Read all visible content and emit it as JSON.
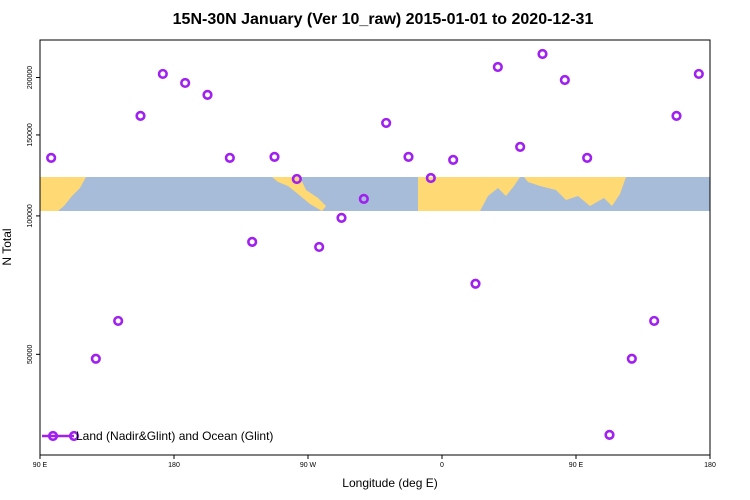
{
  "chart_data": {
    "type": "scatter",
    "title": "15N-30N January (Ver 10_raw)   2015-01-01 to 2020-12-31",
    "x_label": "Longitude (deg E)",
    "y_label": "N Total",
    "x": [
      97.5,
      127.5,
      142.5,
      157.5,
      172.5,
      187.5,
      202.5,
      217.5,
      232.5,
      247.5,
      262.5,
      277.5,
      292.5,
      307.5,
      322.5,
      337.5,
      352.5,
      367.5,
      382.5,
      397.5,
      412.5,
      427.5,
      442.5,
      457.5,
      472.5,
      487.5,
      502.5,
      517.5,
      532.5
    ],
    "series": [
      {
        "name": "Land (Nadir&Glint) and Ocean (Glint)",
        "color": "#a020f0",
        "values": [
          133700,
          48900,
          59100,
          165000,
          203600,
          194600,
          183300,
          133700,
          87800,
          134400,
          120300,
          85600,
          99000,
          108900,
          159300,
          134400,
          120900,
          132400,
          71200,
          210800,
          141300,
          225000,
          197500,
          133700,
          33400,
          48900,
          59100,
          165000,
          203600
        ]
      }
    ],
    "xlim": [
      90,
      540
    ],
    "xticks": [
      {
        "value": 90,
        "label": "90 E"
      },
      180,
      {
        "value": 270,
        "label": "90 W"
      },
      {
        "value": 360,
        "label": "0"
      },
      {
        "value": 450,
        "label": "90 E"
      },
      {
        "value": 540,
        "label": "180"
      }
    ],
    "ylim": [
      30200,
      241300
    ],
    "yticks": [
      50000,
      100000,
      150000,
      200000
    ],
    "log_y": true,
    "legend": "bottom-left"
  }
}
